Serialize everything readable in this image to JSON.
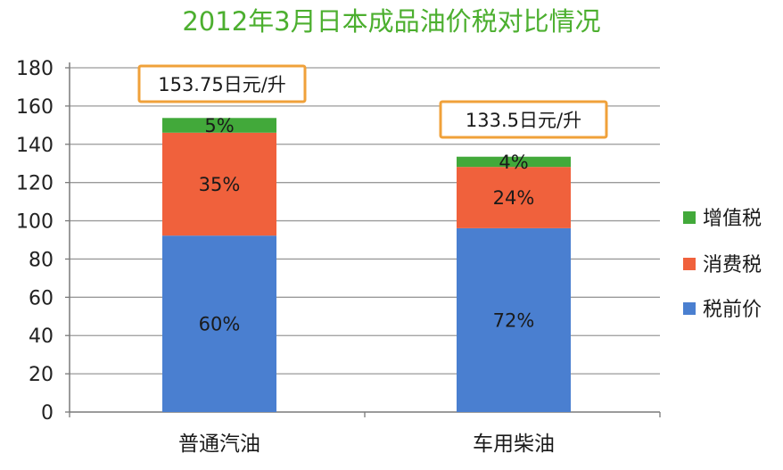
{
  "chart_data": {
    "type": "bar",
    "stacked": true,
    "title": "2012年3月日本成品油价税对比情况",
    "categories": [
      "普通汽油",
      "车用柴油"
    ],
    "ylim": [
      0,
      180
    ],
    "yticks": [
      0,
      20,
      40,
      60,
      80,
      100,
      120,
      140,
      160,
      180
    ],
    "grid": true,
    "legend_position": "right",
    "series": [
      {
        "name": "税前价",
        "values": [
          92.25,
          96.12
        ],
        "labels": [
          "60%",
          "72%"
        ],
        "color": "#4a7fd0"
      },
      {
        "name": "消费税",
        "values": [
          53.81,
          32.04
        ],
        "labels": [
          "35%",
          "24%"
        ],
        "color": "#f0613c"
      },
      {
        "name": "增值税",
        "values": [
          7.69,
          5.34
        ],
        "labels": [
          "5%",
          "4%"
        ],
        "color": "#42a93a"
      }
    ],
    "totals": [
      "153.75日元/升",
      "133.5日元/升"
    ],
    "colors": {
      "title": "#4caf2f",
      "callout_border": "#f0a13a",
      "axis": "#7a7a7a",
      "grid": "#9a9a9a"
    }
  }
}
